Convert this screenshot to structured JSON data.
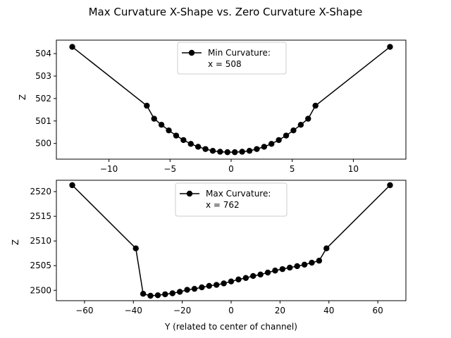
{
  "figure": {
    "suptitle": "Max Curvature X-Shape vs. Zero Curvature X-Shape"
  },
  "colors": {
    "line": "#000000",
    "marker": "#000000",
    "axes": "#000000",
    "legend_border": "#cccccc",
    "background": "#ffffff"
  },
  "chart_data": [
    {
      "type": "line",
      "title": "",
      "xlabel": "",
      "ylabel": "Z",
      "xlim": [
        -14.3,
        14.3
      ],
      "ylim": [
        499.3,
        504.6
      ],
      "xticks": [
        -10,
        -5,
        0,
        5,
        10
      ],
      "yticks": [
        500,
        501,
        502,
        503,
        504
      ],
      "grid": false,
      "legend": {
        "position": "top-center",
        "lines": [
          "Min Curvature:",
          "x = 508"
        ]
      },
      "series": [
        {
          "name": "Min Curvature:\nx = 508",
          "x": [
            -13,
            -6.9,
            -6.3,
            -5.7,
            -5.1,
            -4.5,
            -3.9,
            -3.3,
            -2.7,
            -2.1,
            -1.5,
            -0.9,
            -0.3,
            0.3,
            0.9,
            1.5,
            2.1,
            2.7,
            3.3,
            3.9,
            4.5,
            5.1,
            5.7,
            6.3,
            6.9,
            13
          ],
          "y": [
            504.3,
            501.68,
            501.1,
            500.83,
            500.58,
            500.35,
            500.15,
            499.98,
            499.85,
            499.75,
            499.67,
            499.63,
            499.61,
            499.61,
            499.63,
            499.67,
            499.75,
            499.85,
            499.98,
            500.15,
            500.35,
            500.58,
            500.83,
            501.1,
            501.68,
            504.3
          ]
        }
      ]
    },
    {
      "type": "line",
      "title": "",
      "xlabel": "Y (related to center of channel)",
      "ylabel": "Z",
      "xlim": [
        -71.5,
        71.5
      ],
      "ylim": [
        2497.9,
        2522.3
      ],
      "xticks": [
        -60,
        -40,
        -20,
        0,
        20,
        40,
        60
      ],
      "yticks": [
        2500,
        2505,
        2510,
        2515,
        2520
      ],
      "grid": false,
      "legend": {
        "position": "top-center",
        "lines": [
          "Max Curvature:",
          "x = 762"
        ]
      },
      "series": [
        {
          "name": "Max Curvature:\nx = 762",
          "x": [
            -65,
            -39,
            -36,
            -33,
            -30,
            -27,
            -24,
            -21,
            -18,
            -15,
            -12,
            -9,
            -6,
            -3,
            0,
            3,
            6,
            9,
            12,
            15,
            18,
            21,
            24,
            27,
            30,
            33,
            36,
            39,
            65
          ],
          "y": [
            2521.3,
            2508.5,
            2499.3,
            2498.9,
            2499.0,
            2499.2,
            2499.4,
            2499.7,
            2500.1,
            2500.3,
            2500.6,
            2500.9,
            2501.1,
            2501.4,
            2501.8,
            2502.2,
            2502.5,
            2502.9,
            2503.2,
            2503.6,
            2504.0,
            2504.3,
            2504.6,
            2504.9,
            2505.2,
            2505.6,
            2506.0,
            2508.5,
            2521.3
          ]
        }
      ]
    }
  ]
}
